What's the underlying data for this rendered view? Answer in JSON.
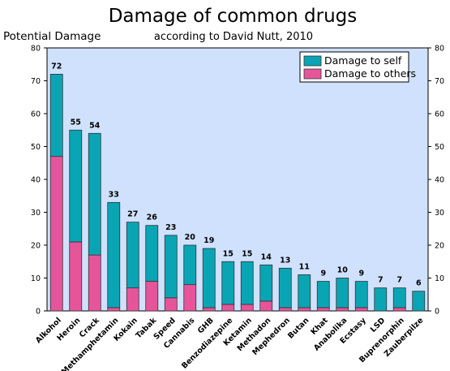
{
  "chart_data": {
    "type": "bar",
    "stacked": true,
    "title": "Damage of common drugs",
    "subtitle": "according to David Nutt, 2010",
    "ylabel": "Potential Damage",
    "ylim": [
      0,
      80
    ],
    "yticks": [
      0,
      10,
      20,
      30,
      40,
      50,
      60,
      70,
      80
    ],
    "grid": false,
    "legend_position": "top-right",
    "categories": [
      "Alkohol",
      "Heroin",
      "Crack",
      "Methamphetamin",
      "Kokain",
      "Tabak",
      "Speed",
      "Cannabis",
      "GHB",
      "Benzodiazepine",
      "Ketamin",
      "Methadon",
      "Mephedron",
      "Butan",
      "Khat",
      "Anabolika",
      "Ecstasy",
      "LSD",
      "Buprenorphin",
      "Zauberpilze"
    ],
    "totals": [
      72,
      55,
      54,
      33,
      27,
      26,
      23,
      20,
      19,
      15,
      15,
      14,
      13,
      11,
      9,
      10,
      9,
      7,
      7,
      6
    ],
    "series": [
      {
        "name": "Damage to self",
        "color": "#0aa5b4",
        "values": [
          25,
          34,
          37,
          32,
          20,
          17,
          19,
          12,
          18,
          13,
          13,
          11,
          12,
          10,
          8,
          9,
          8,
          7,
          6,
          6
        ]
      },
      {
        "name": "Damage to others",
        "color": "#e6559a",
        "values": [
          47,
          21,
          17,
          1,
          7,
          9,
          4,
          8,
          1,
          2,
          2,
          3,
          1,
          1,
          1,
          1,
          1,
          0,
          1,
          0
        ]
      }
    ],
    "colors": {
      "plot_background": "#cfe1fc",
      "bar_edge": "#333333"
    }
  }
}
